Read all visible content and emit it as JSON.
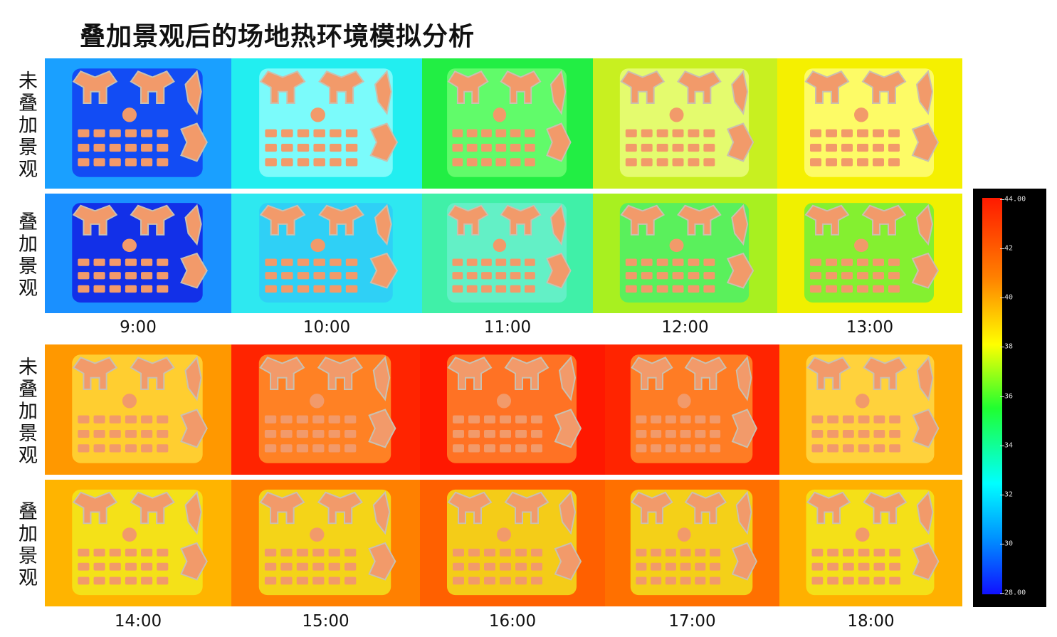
{
  "title": "叠加景观后的场地热环境模拟分析",
  "groups": [
    {
      "rows": [
        {
          "label": "未叠加景观"
        },
        {
          "label": "叠加景观"
        }
      ],
      "times": [
        "9:00",
        "10:00",
        "11:00",
        "12:00",
        "13:00"
      ]
    },
    {
      "rows": [
        {
          "label": "未叠加景观"
        },
        {
          "label": "叠加景观"
        }
      ],
      "times": [
        "14:00",
        "15:00",
        "16:00",
        "17:00",
        "18:00"
      ]
    }
  ],
  "colorbar": {
    "ticks": [
      "44.00",
      "42",
      "40",
      "38",
      "36",
      "34",
      "32",
      "30",
      "28.00"
    ]
  }
}
